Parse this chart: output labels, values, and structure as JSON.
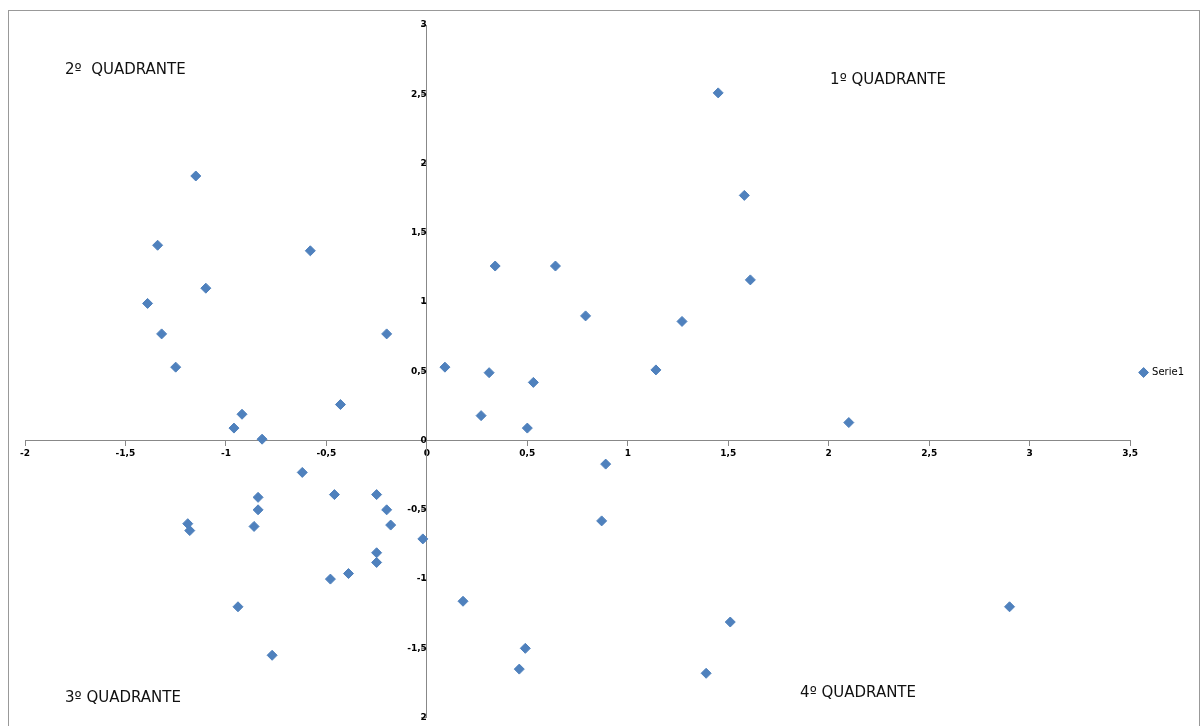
{
  "chart_data": {
    "type": "scatter",
    "annotations": [
      "1º QUADRANTE",
      "2º  QUADRANTE",
      "3º QUADRANTE",
      "4º QUADRANTE"
    ],
    "series": [
      {
        "name": "Serie1",
        "color": "#4f81bd",
        "x": [
          1.45,
          1.58,
          1.61,
          1.27,
          0.79,
          0.64,
          0.34,
          0.09,
          0.31,
          0.53,
          1.14,
          0.27,
          0.5,
          2.1,
          0.89,
          0.87,
          -0.02,
          0.18,
          0.49,
          0.46,
          1.39,
          1.51,
          2.9,
          -1.15,
          -1.34,
          -1.39,
          -1.32,
          -1.1,
          -0.58,
          -0.2,
          -1.25,
          -0.92,
          -0.96,
          -0.82,
          -0.43,
          -0.62,
          -0.84,
          -0.84,
          -0.86,
          -1.19,
          -1.18,
          -0.46,
          -0.25,
          -0.2,
          -0.18,
          -0.25,
          -0.25,
          -0.39,
          -0.48,
          -0.94,
          -0.77
        ],
        "values": [
          2.51,
          1.77,
          1.16,
          0.86,
          0.9,
          1.26,
          1.26,
          0.53,
          0.49,
          0.42,
          0.51,
          0.18,
          0.09,
          0.13,
          -0.17,
          -0.58,
          -0.71,
          -1.16,
          -1.5,
          -1.65,
          -1.68,
          -1.31,
          -1.2,
          1.91,
          1.41,
          0.99,
          0.77,
          1.1,
          1.37,
          0.77,
          0.53,
          0.19,
          0.09,
          0.01,
          0.26,
          -0.23,
          -0.41,
          -0.5,
          -0.62,
          -0.6,
          -0.65,
          -0.39,
          -0.39,
          -0.5,
          -0.61,
          -0.81,
          -0.88,
          -0.96,
          -1.0,
          -1.2,
          -1.55
        ]
      }
    ],
    "xlim": [
      -2,
      3.5
    ],
    "xticks": [
      {
        "value": -2,
        "label": "-2"
      },
      {
        "value": -1.5,
        "label": "-1,5"
      },
      {
        "value": -1,
        "label": "-1"
      },
      {
        "value": -0.5,
        "label": "-0,5"
      },
      {
        "value": 0,
        "label": "0"
      },
      {
        "value": 0.5,
        "label": "0,5"
      },
      {
        "value": 1,
        "label": "1"
      },
      {
        "value": 1.5,
        "label": "1,5"
      },
      {
        "value": 2,
        "label": "2"
      },
      {
        "value": 2.5,
        "label": "2,5"
      },
      {
        "value": 3,
        "label": "3"
      },
      {
        "value": 3.5,
        "label": "3,5"
      }
    ],
    "ylim": [
      -2,
      3
    ],
    "yticks": [
      {
        "value": -2,
        "label": "2"
      },
      {
        "value": -1.5,
        "label": "-1,5"
      },
      {
        "value": -1,
        "label": "-1"
      },
      {
        "value": -0.5,
        "label": "-0,5"
      },
      {
        "value": 0,
        "label": "0"
      },
      {
        "value": 0.5,
        "label": "0,5"
      },
      {
        "value": 1,
        "label": "1"
      },
      {
        "value": 1.5,
        "label": "1,5"
      },
      {
        "value": 2,
        "label": "2"
      },
      {
        "value": 2.5,
        "label": "2,5"
      },
      {
        "value": 3,
        "label": "3"
      }
    ],
    "grid": false,
    "legend": "right",
    "marker": "diamond"
  }
}
